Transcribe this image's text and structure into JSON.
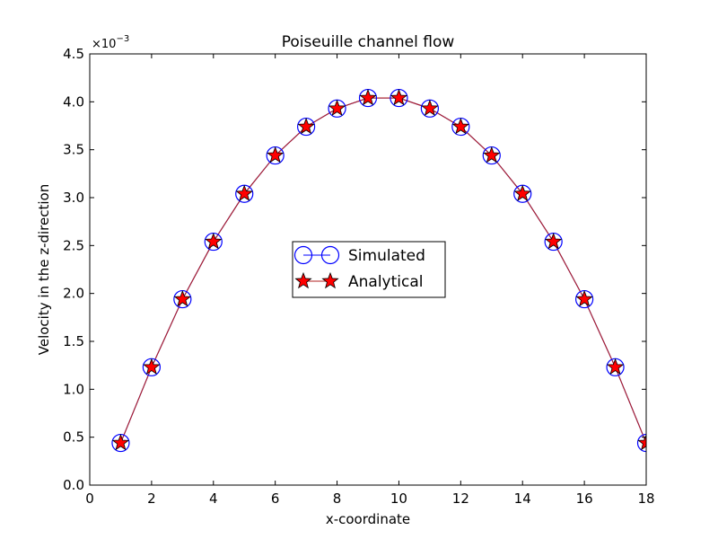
{
  "chart_data": {
    "type": "line",
    "title": "Poiseuille channel flow",
    "xlabel": "x-coordinate",
    "ylabel": "Velocity in the z-direction",
    "y_scale_label": "×10",
    "y_scale_exponent": "−3",
    "xlim": [
      0,
      18
    ],
    "ylim": [
      0,
      4.5
    ],
    "xticks": [
      0,
      2,
      4,
      6,
      8,
      10,
      12,
      14,
      16,
      18
    ],
    "yticks": [
      0,
      0.5,
      1,
      1.5,
      2,
      2.5,
      3,
      3.5,
      4,
      4.5
    ],
    "ytick_labels": [
      "0.0",
      "0.5",
      "1.0",
      "1.5",
      "2.0",
      "2.5",
      "3.0",
      "3.5",
      "4.0",
      "4.5"
    ],
    "x": [
      1,
      2,
      3,
      4,
      5,
      6,
      7,
      8,
      9,
      10,
      11,
      12,
      13,
      14,
      15,
      16,
      17,
      18
    ],
    "series": [
      {
        "name": "Simulated",
        "color": "#0000ff",
        "marker": "circle",
        "values": [
          0.44,
          1.23,
          1.94,
          2.54,
          3.04,
          3.44,
          3.74,
          3.93,
          4.04,
          4.04,
          3.93,
          3.74,
          3.44,
          3.04,
          2.54,
          1.94,
          1.23,
          0.44
        ]
      },
      {
        "name": "Analytical",
        "color": "#ff0000",
        "line_color": "#b22222",
        "marker": "star",
        "values": [
          0.44,
          1.23,
          1.94,
          2.54,
          3.04,
          3.44,
          3.74,
          3.93,
          4.04,
          4.04,
          3.93,
          3.74,
          3.44,
          3.04,
          2.54,
          1.94,
          1.23,
          0.44
        ]
      }
    ],
    "grid": false,
    "legend_position": "center"
  }
}
